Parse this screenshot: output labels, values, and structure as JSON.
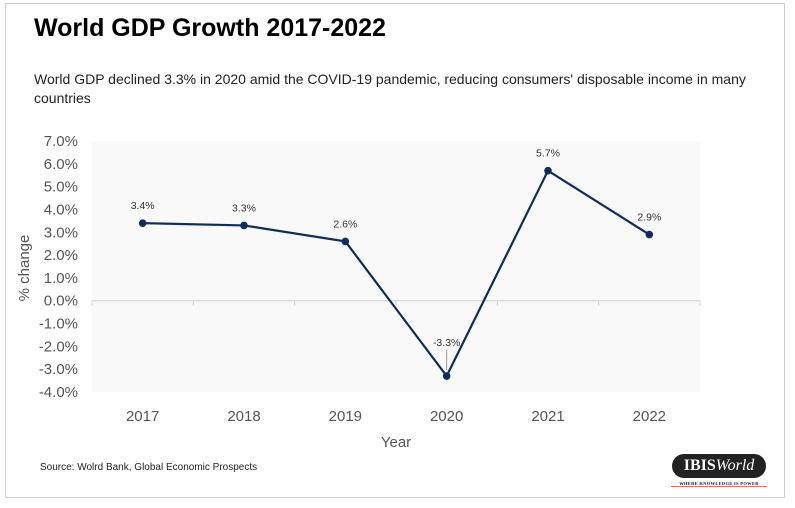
{
  "title": "World GDP Growth 2017-2022",
  "subtitle": "World GDP declined 3.3% in 2020 amid the COVID-19 pandemic, reducing consumers' disposable income in many countries",
  "source": "Source: Wolrd Bank, Global Economic Prospects",
  "logo": {
    "text": "IBISWorld",
    "tagline": "WHERE KNOWLEDGE IS POWER"
  },
  "chart_data": {
    "type": "line",
    "categories": [
      "2017",
      "2018",
      "2019",
      "2020",
      "2021",
      "2022"
    ],
    "values": [
      3.4,
      3.3,
      2.6,
      -3.3,
      5.7,
      2.9
    ],
    "data_labels": [
      "3.4%",
      "3.3%",
      "2.6%",
      "-3.3%",
      "5.7%",
      "2.9%"
    ],
    "xlabel": "Year",
    "ylabel": "% change",
    "ylim": [
      -4,
      7
    ],
    "yticks": [
      "7.0%",
      "6.0%",
      "5.0%",
      "4.0%",
      "3.0%",
      "2.0%",
      "1.0%",
      "0.0%",
      "-1.0%",
      "-2.0%",
      "-3.0%",
      "-4.0%"
    ],
    "line_color": "#0e2d5c",
    "grid": false
  }
}
